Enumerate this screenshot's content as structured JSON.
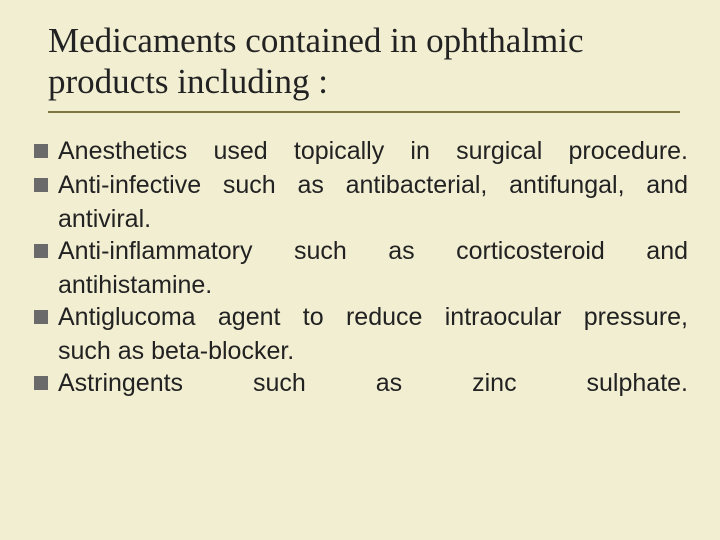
{
  "slide": {
    "background_color": "#f2eed2",
    "title": "Medicaments contained in ophthalmic products including :",
    "title_font_family": "Times New Roman",
    "title_font_size_pt": 26,
    "rule_color": "#807740",
    "bullet_color": "#6a6a6a",
    "bullet_shape": "square",
    "body_font_family": "Arial",
    "body_font_size_pt": 19,
    "items": [
      {
        "line1": "Anesthetics used  topically  in  surgical  procedure.",
        "line2": ""
      },
      {
        "line1": "Anti-infective such as antibacterial, antifungal, and",
        "line2": "antiviral."
      },
      {
        "line1": "Anti-inflammatory  such  as  corticosteroid   and",
        "line2": "antihistamine."
      },
      {
        "line1": "Antiglucoma agent to reduce intraocular pressure,",
        "line2": "such as beta-blocker."
      },
      {
        "line1": "Astringents      such       as       zinc      sulphate.",
        "line2": ""
      }
    ]
  }
}
